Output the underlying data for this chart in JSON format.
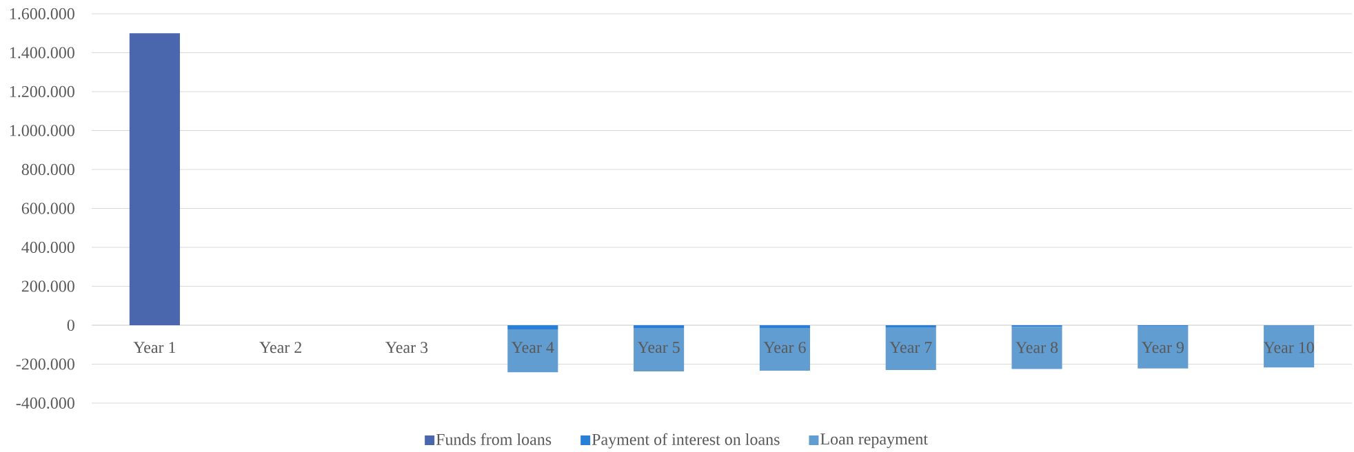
{
  "chart_data": {
    "type": "bar",
    "stacked": true,
    "grid": "y",
    "legend": "bottom",
    "categories": [
      "Year 1",
      "Year 2",
      "Year 3",
      "Year 4",
      "Year 5",
      "Year 6",
      "Year 7",
      "Year 8",
      "Year 9",
      "Year 10"
    ],
    "series": [
      {
        "name": "Funds from loans",
        "color": "#4a66ac",
        "values": [
          1500000,
          null,
          null,
          null,
          null,
          null,
          null,
          null,
          null,
          null
        ]
      },
      {
        "name": "Payment of interest on loans",
        "color": "#297fd5",
        "values": [
          null,
          null,
          null,
          -21000,
          -17000,
          -14000,
          -11000,
          -9000,
          -6000,
          -3000
        ]
      },
      {
        "name": "Loan repayment",
        "color": "#629dd1",
        "values": [
          null,
          null,
          null,
          -221000,
          -220000,
          -220000,
          -219000,
          -216000,
          -216000,
          -214000
        ]
      }
    ],
    "ylim": [
      -400000,
      1600000
    ],
    "yticks": [
      {
        "value": -400000,
        "label": "-400.000"
      },
      {
        "value": -200000,
        "label": "-200.000"
      },
      0,
      {
        "value": 200000,
        "label": "200.000"
      },
      {
        "value": 400000,
        "label": "400.000"
      },
      {
        "value": 600000,
        "label": "600.000"
      },
      {
        "value": 800000,
        "label": "800.000"
      },
      {
        "value": 1000000,
        "label": "1.000.000"
      },
      {
        "value": 1200000,
        "label": "1.200.000"
      },
      {
        "value": 1400000,
        "label": "1.400.000"
      },
      {
        "value": 1600000,
        "label": "1.600.000"
      }
    ]
  }
}
